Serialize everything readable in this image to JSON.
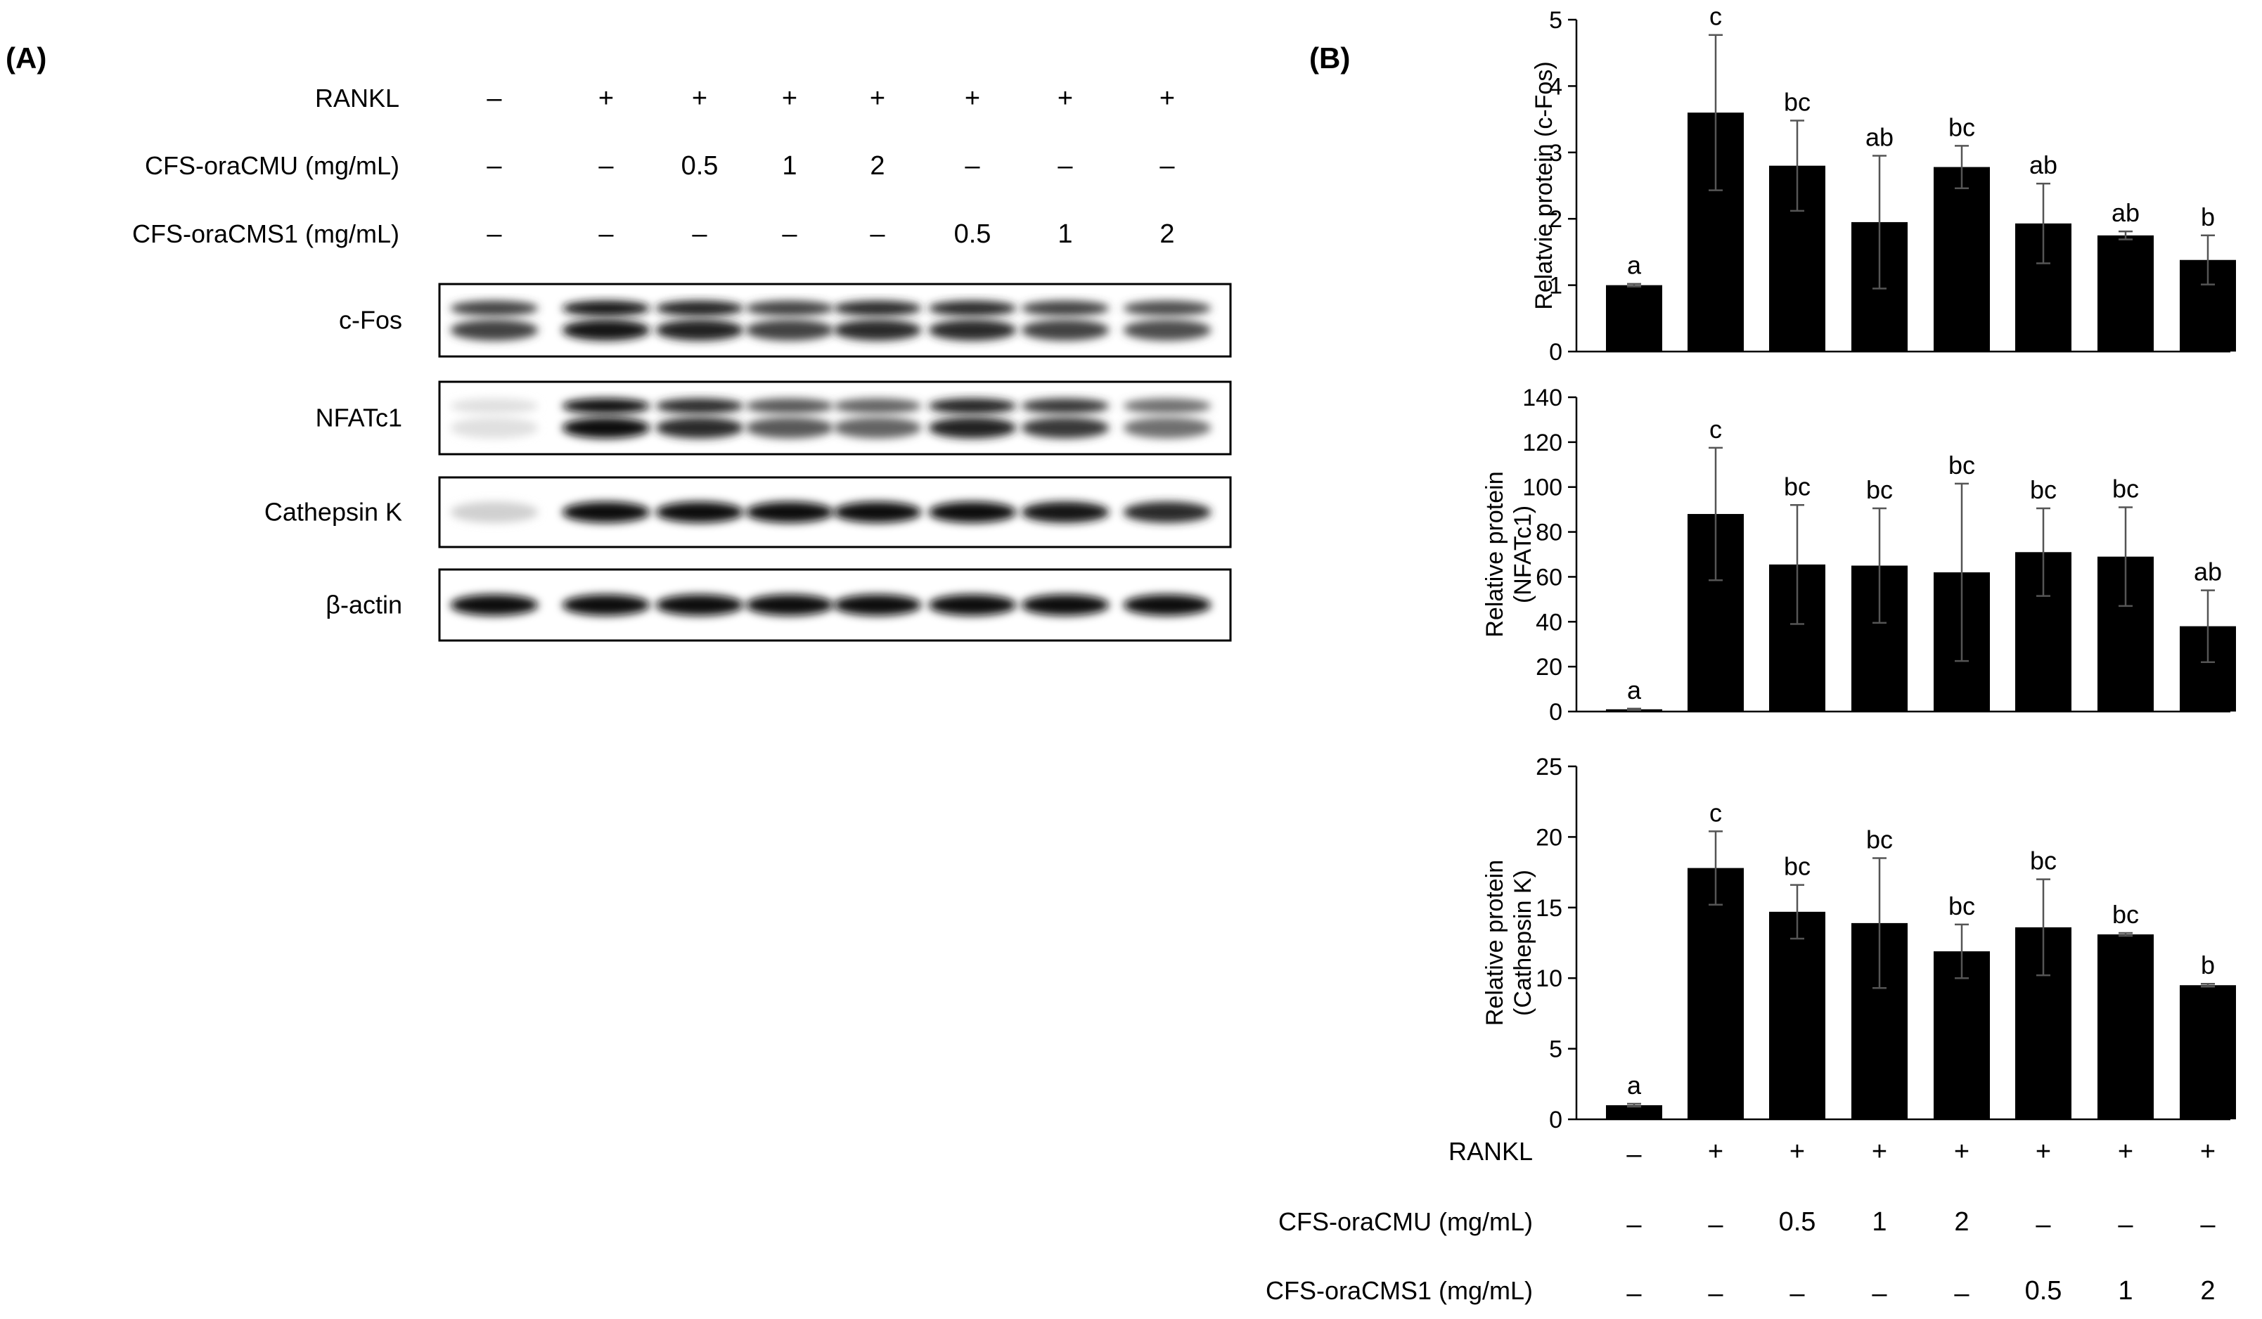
{
  "panel_a": {
    "label": "(A)",
    "conditions": [
      {
        "label": "RANKL",
        "values": [
          "–",
          "+",
          "+",
          "+",
          "+",
          "+",
          "+",
          "+"
        ]
      },
      {
        "label": "CFS-oraCMU (mg/mL)",
        "values": [
          "–",
          "–",
          "0.5",
          "1",
          "2",
          "–",
          "–",
          "–"
        ]
      },
      {
        "label": "CFS-oraCMS1 (mg/mL)",
        "values": [
          "–",
          "–",
          "–",
          "–",
          "–",
          "0.5",
          "1",
          "2"
        ]
      }
    ],
    "blots": [
      {
        "label": "c-Fos",
        "intensity": [
          0.75,
          0.95,
          0.9,
          0.75,
          0.85,
          0.85,
          0.75,
          0.7
        ]
      },
      {
        "label": "NFATc1",
        "intensity": [
          0.05,
          1.0,
          0.85,
          0.65,
          0.6,
          0.9,
          0.8,
          0.55
        ]
      },
      {
        "label": "Cathepsin K",
        "intensity": [
          0.12,
          1.0,
          1.0,
          1.0,
          1.0,
          1.0,
          0.95,
          0.85
        ]
      },
      {
        "label": "β-actin",
        "intensity": [
          1.0,
          1.0,
          1.0,
          1.0,
          1.0,
          1.0,
          1.0,
          1.0
        ]
      }
    ]
  },
  "panel_b": {
    "label": "(B)",
    "conditions": [
      {
        "label": "RANKL",
        "values": [
          "–",
          "+",
          "+",
          "+",
          "+",
          "+",
          "+",
          "+"
        ]
      },
      {
        "label": "CFS-oraCMU (mg/mL)",
        "values": [
          "–",
          "–",
          "0.5",
          "1",
          "2",
          "–",
          "–",
          "–"
        ]
      },
      {
        "label": "CFS-oraCMS1 (mg/mL)",
        "values": [
          "–",
          "–",
          "–",
          "–",
          "–",
          "0.5",
          "1",
          "2"
        ]
      }
    ]
  },
  "chart_data": [
    {
      "type": "bar",
      "ylabel": [
        "Relatvie protein (c-Fos)"
      ],
      "ylim": [
        0,
        5
      ],
      "yticks": [
        0,
        1,
        2,
        3,
        4,
        5
      ],
      "values": [
        1.0,
        3.6,
        2.8,
        1.95,
        2.78,
        1.93,
        1.75,
        1.38
      ],
      "errors": [
        0.02,
        1.17,
        0.68,
        1.0,
        0.32,
        0.6,
        0.06,
        0.37
      ],
      "significance": [
        "a",
        "c",
        "bc",
        "ab",
        "bc",
        "ab",
        "ab",
        "b"
      ],
      "bar_color": "#000000"
    },
    {
      "type": "bar",
      "ylabel": [
        "Relative protein",
        "(NFATc1)"
      ],
      "ylim": [
        0,
        140
      ],
      "yticks": [
        0,
        20,
        40,
        60,
        80,
        100,
        120,
        140
      ],
      "values": [
        1,
        88,
        65.5,
        65,
        62,
        71,
        69,
        38
      ],
      "errors": [
        0.3,
        29.5,
        26.5,
        25.5,
        39.5,
        19.5,
        22,
        16
      ],
      "significance": [
        "a",
        "c",
        "bc",
        "bc",
        "bc",
        "bc",
        "bc",
        "ab"
      ],
      "bar_color": "#000000"
    },
    {
      "type": "bar",
      "ylabel": [
        "Relative protein",
        "(Cathepsin K)"
      ],
      "ylim": [
        0,
        25
      ],
      "yticks": [
        0,
        5,
        10,
        15,
        20,
        25
      ],
      "values": [
        1.0,
        17.8,
        14.7,
        13.9,
        11.9,
        13.6,
        13.1,
        9.5
      ],
      "errors": [
        0.1,
        2.6,
        1.9,
        4.6,
        1.9,
        3.4,
        0.1,
        0.1
      ],
      "significance": [
        "a",
        "c",
        "bc",
        "bc",
        "bc",
        "bc",
        "bc",
        "b"
      ],
      "bar_color": "#000000"
    }
  ]
}
